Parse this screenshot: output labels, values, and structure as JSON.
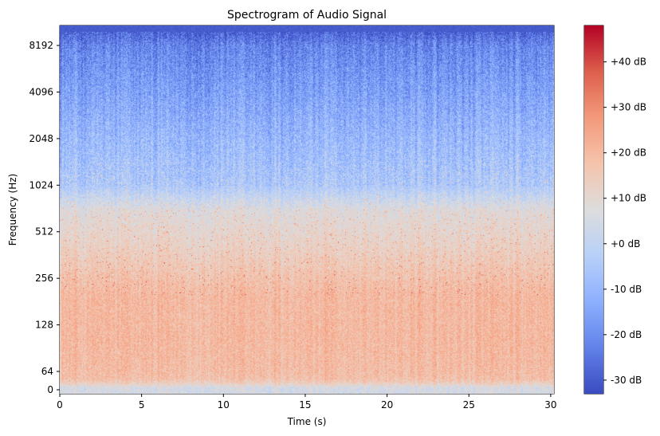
{
  "chart_data": {
    "type": "heatmap",
    "title": "Spectrogram of Audio Signal",
    "xlabel": "Time (s)",
    "ylabel": "Frequency (Hz)",
    "xlim": [
      0,
      30.2
    ],
    "x_ticks": [
      {
        "value": 0,
        "label": "0"
      },
      {
        "value": 5,
        "label": "5"
      },
      {
        "value": 10,
        "label": "10"
      },
      {
        "value": 15,
        "label": "15"
      },
      {
        "value": 20,
        "label": "20"
      },
      {
        "value": 25,
        "label": "25"
      },
      {
        "value": 30,
        "label": "30"
      }
    ],
    "y_scale": "symlog (base 2)",
    "ylim": [
      0,
      11025
    ],
    "y_ticks": [
      {
        "value": 0,
        "label": "0"
      },
      {
        "value": 64,
        "label": "64"
      },
      {
        "value": 128,
        "label": "128"
      },
      {
        "value": 256,
        "label": "256"
      },
      {
        "value": 512,
        "label": "512"
      },
      {
        "value": 1024,
        "label": "1024"
      },
      {
        "value": 2048,
        "label": "2048"
      },
      {
        "value": 4096,
        "label": "4096"
      },
      {
        "value": 8192,
        "label": "8192"
      }
    ],
    "colormap": "coolwarm",
    "colorbar": {
      "range_db": [
        -33,
        48
      ],
      "ticks": [
        {
          "value": -30,
          "label": "-30 dB"
        },
        {
          "value": -20,
          "label": "-20 dB"
        },
        {
          "value": -10,
          "label": "-10 dB"
        },
        {
          "value": 0,
          "label": "+0 dB"
        },
        {
          "value": 10,
          "label": "+10 dB"
        },
        {
          "value": 20,
          "label": "+20 dB"
        },
        {
          "value": 30,
          "label": "+30 dB"
        },
        {
          "value": 40,
          "label": "+40 dB"
        }
      ]
    },
    "approx_level_by_frequency_db": [
      {
        "hz": 10,
        "db": 5
      },
      {
        "hz": 40,
        "db": 18
      },
      {
        "hz": 100,
        "db": 20
      },
      {
        "hz": 200,
        "db": 20
      },
      {
        "hz": 400,
        "db": 13
      },
      {
        "hz": 700,
        "db": 8
      },
      {
        "hz": 1024,
        "db": -5
      },
      {
        "hz": 2048,
        "db": -10
      },
      {
        "hz": 4096,
        "db": -16
      },
      {
        "hz": 8192,
        "db": -22
      },
      {
        "hz": 10500,
        "db": -30
      }
    ],
    "grid": false
  }
}
